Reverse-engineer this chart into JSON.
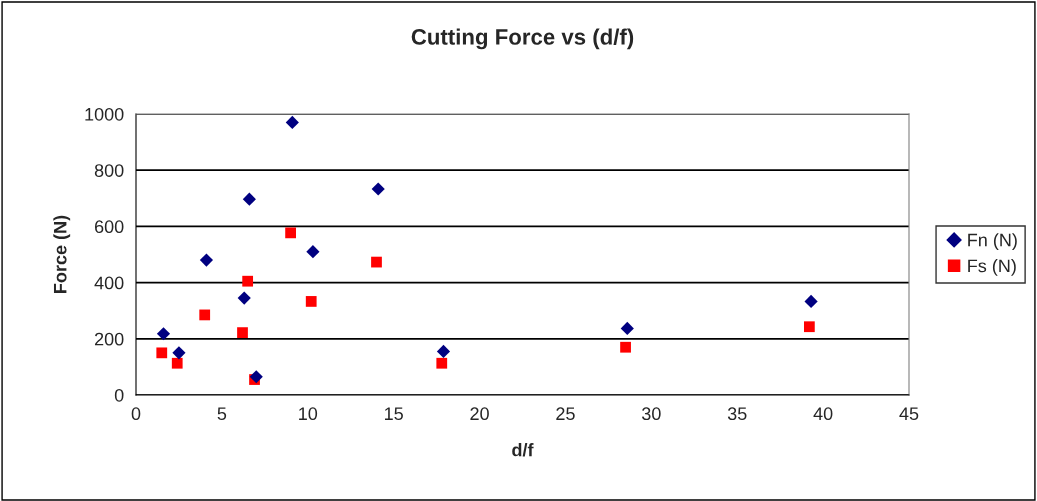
{
  "chart_data": {
    "type": "scatter",
    "title": "Cutting Force vs (d/f)",
    "xlabel": "d/f",
    "ylabel": "Force (N)",
    "series": [
      {
        "name": "Fn (N)",
        "color": "#000080",
        "marker": "diamond",
        "x": [
          1.6,
          2.5,
          4.1,
          6.3,
          6.6,
          7.0,
          9.1,
          10.3,
          14.1,
          17.9,
          28.6,
          39.3
        ],
        "values": [
          218,
          150,
          480,
          345,
          697,
          65,
          970,
          510,
          733,
          155,
          237,
          333
        ]
      },
      {
        "name": "Fs (N)",
        "color": "#ff0000",
        "marker": "square",
        "x": [
          1.5,
          2.4,
          4.0,
          6.2,
          6.5,
          6.9,
          9.0,
          10.2,
          14.0,
          17.8,
          28.5,
          39.2
        ],
        "values": [
          150,
          113,
          285,
          222,
          405,
          55,
          577,
          333,
          473,
          113,
          170,
          243
        ]
      }
    ],
    "xlim": [
      0,
      45
    ],
    "xticks": [
      0,
      5,
      10,
      15,
      20,
      25,
      30,
      35,
      40,
      45
    ],
    "ylim": [
      0,
      1000
    ],
    "yticks": [
      0,
      200,
      400,
      600,
      800,
      1000
    ],
    "grid": "y",
    "legend": "right"
  }
}
